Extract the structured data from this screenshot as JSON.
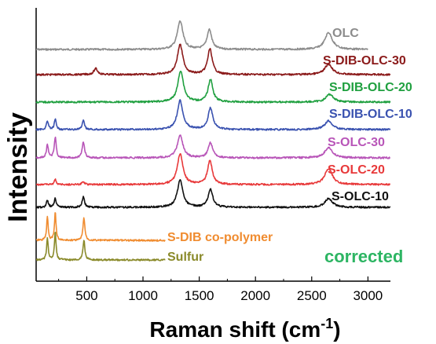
{
  "chart_data": {
    "type": "line",
    "title": "",
    "xlabel": "Raman shift (cm",
    "xlabel_sup": "-1",
    "xlabel_close": ")",
    "ylabel": "Intensity",
    "xlim": [
      50,
      3200
    ],
    "xticks": [
      500,
      1000,
      1500,
      2000,
      2500,
      3000
    ],
    "tick_labels": [
      "500",
      "1000",
      "1500",
      "2000",
      "2500",
      "3000"
    ],
    "grid": false,
    "stacked_offset": true,
    "annotation": "corrected",
    "annotation_color": "#2db563",
    "series": [
      {
        "name": "OLC",
        "color": "#8c8c8c",
        "xmax": 3000,
        "peaks": [
          [
            1330,
            30,
            1.0
          ],
          [
            1590,
            25,
            0.7
          ],
          [
            2650,
            40,
            0.6
          ]
        ]
      },
      {
        "name": "S-DIB-OLC-30",
        "color": "#8b1a1a",
        "xmax": 3200,
        "peaks": [
          [
            580,
            20,
            0.2
          ],
          [
            1330,
            30,
            1.0
          ],
          [
            1595,
            25,
            0.85
          ],
          [
            2650,
            40,
            0.35
          ]
        ]
      },
      {
        "name": "S-DIB-OLC-20",
        "color": "#20a040",
        "xmax": 3200,
        "peaks": [
          [
            1335,
            30,
            1.0
          ],
          [
            1600,
            25,
            0.72
          ],
          [
            2660,
            40,
            0.25
          ]
        ]
      },
      {
        "name": "S-DIB-OLC-10",
        "color": "#3a52b0",
        "xmax": 3200,
        "peaks": [
          [
            150,
            10,
            0.3
          ],
          [
            220,
            10,
            0.35
          ],
          [
            470,
            12,
            0.3
          ],
          [
            1330,
            30,
            1.0
          ],
          [
            1600,
            25,
            0.75
          ],
          [
            2650,
            40,
            0.3
          ]
        ]
      },
      {
        "name": "S-OLC-30",
        "color": "#b855b8",
        "xmax": 3200,
        "peaks": [
          [
            150,
            10,
            0.45
          ],
          [
            220,
            10,
            0.7
          ],
          [
            470,
            12,
            0.55
          ],
          [
            1330,
            30,
            0.75
          ],
          [
            1600,
            25,
            0.5
          ],
          [
            2650,
            40,
            0.35
          ]
        ]
      },
      {
        "name": "S-OLC-20",
        "color": "#e8393a",
        "xmax": 3200,
        "peaks": [
          [
            220,
            10,
            0.15
          ],
          [
            470,
            12,
            0.1
          ],
          [
            1330,
            30,
            0.95
          ],
          [
            1595,
            25,
            0.75
          ],
          [
            2650,
            40,
            0.5
          ]
        ]
      },
      {
        "name": "S-OLC-10",
        "color": "#111111",
        "xmax": 3200,
        "peaks": [
          [
            150,
            10,
            0.25
          ],
          [
            220,
            10,
            0.3
          ],
          [
            470,
            12,
            0.35
          ],
          [
            1330,
            30,
            0.9
          ],
          [
            1600,
            25,
            0.6
          ],
          [
            2650,
            40,
            0.3
          ]
        ]
      },
      {
        "name": "S-DIB co-polymer",
        "color": "#f08c30",
        "xmax": 1200,
        "peaks": [
          [
            150,
            8,
            0.85
          ],
          [
            220,
            8,
            1.0
          ],
          [
            475,
            10,
            0.8
          ]
        ]
      },
      {
        "name": "Sulfur",
        "color": "#8a8a2a",
        "xmax": 1200,
        "peaks": [
          [
            150,
            8,
            0.8
          ],
          [
            220,
            8,
            1.0
          ],
          [
            475,
            10,
            0.7
          ]
        ]
      }
    ]
  }
}
